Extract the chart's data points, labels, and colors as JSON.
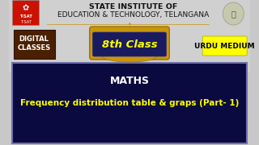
{
  "bg_color": "#c8c8c8",
  "header_bg": "#d8d8d8",
  "header_line1": "STATE INSTITUTE OF",
  "header_line2": "EDUCATION & TECHNOLOGY, TELANGANA",
  "header_text_color": "#111111",
  "header_fontsize": 6.8,
  "digital_box_color": "#4a2000",
  "digital_text": "DIGITAL\nCLASSES",
  "digital_text_color": "#ffffff",
  "digital_fontsize": 6.0,
  "class_box_outer_color": "#1a1a5e",
  "class_box_border_color": "#2a2a8e",
  "class_text": "8th Class",
  "class_text_color": "#ffff00",
  "class_fontsize": 9.5,
  "gold_color": "#c8960a",
  "gold_dark": "#a07000",
  "urdu_box_color": "#ffff00",
  "urdu_text": "URDU MEDIUM",
  "urdu_text_color": "#000000",
  "urdu_fontsize": 6.5,
  "bottom_box_color": "#0a0a40",
  "bottom_border_color": "#7070aa",
  "subject_text": "MATHS",
  "subject_text_color": "#ffffff",
  "subject_fontsize": 9,
  "topic_text": "Frequency distribution table & graps (Part- 1)",
  "topic_text_color": "#ffff00",
  "topic_fontsize": 7.5
}
